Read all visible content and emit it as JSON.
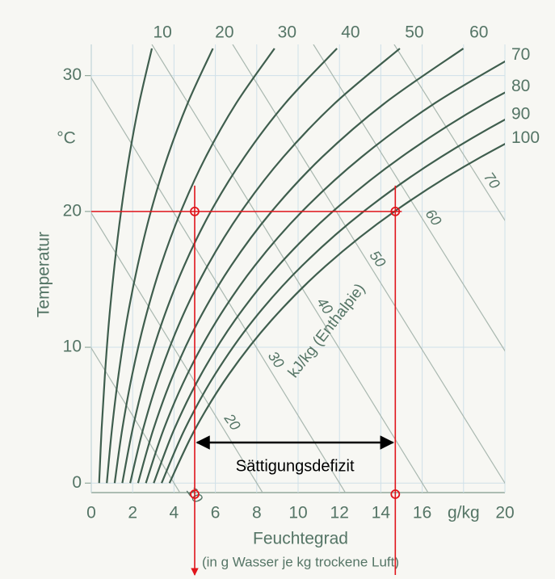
{
  "chart_data": {
    "type": "line",
    "y_label": "Temperatur",
    "y_unit": "°C",
    "x_label": "Feuchtegrad",
    "x_sublabel": "(in g Wasser je kg trockene Luft)",
    "xlim": [
      0,
      20
    ],
    "ylim": [
      -0.7,
      32.3
    ],
    "xticks": [
      0,
      2,
      4,
      6,
      8,
      10,
      12,
      14,
      16,
      {
        "value": 18,
        "label": "g/kg"
      },
      20
    ],
    "yticks": [
      0,
      10,
      20,
      30
    ],
    "grid": true,
    "temperatures": [
      0,
      4,
      8,
      12,
      16,
      20,
      24,
      28,
      32
    ],
    "series": [
      {
        "name": "10",
        "color": "#3f5e4e",
        "values": [
          0.38,
          0.5,
          0.66,
          0.86,
          1.12,
          1.44,
          1.83,
          2.32,
          2.93
        ]
      },
      {
        "name": "20",
        "color": "#3f5e4e",
        "values": [
          0.75,
          1.0,
          1.32,
          1.72,
          2.24,
          2.88,
          3.68,
          4.67,
          5.88
        ]
      },
      {
        "name": "30",
        "color": "#3f5e4e",
        "values": [
          1.13,
          1.5,
          1.98,
          2.59,
          3.36,
          4.33,
          5.53,
          7.02,
          8.86
        ]
      },
      {
        "name": "40",
        "color": "#3f5e4e",
        "values": [
          1.5,
          2.0,
          2.64,
          3.46,
          4.49,
          5.78,
          7.4,
          9.4,
          11.88
        ]
      },
      {
        "name": "50",
        "color": "#3f5e4e",
        "values": [
          1.88,
          2.51,
          3.31,
          4.33,
          5.62,
          7.25,
          9.28,
          11.8,
          14.92
        ]
      },
      {
        "name": "60",
        "color": "#3f5e4e",
        "values": [
          2.26,
          3.01,
          3.97,
          5.2,
          6.76,
          8.72,
          11.16,
          14.21,
          17.99
        ]
      },
      {
        "name": "70",
        "color": "#3f5e4e",
        "values": [
          2.64,
          3.51,
          4.64,
          6.08,
          7.9,
          10.19,
          13.06,
          16.64,
          21.09
        ]
      },
      {
        "name": "80",
        "color": "#3f5e4e",
        "values": [
          3.02,
          4.02,
          5.31,
          6.95,
          9.04,
          11.68,
          14.98,
          19.09,
          24.22
        ]
      },
      {
        "name": "90",
        "color": "#3f5e4e",
        "values": [
          3.4,
          4.53,
          5.98,
          7.83,
          10.19,
          13.17,
          16.9,
          21.56,
          27.38
        ]
      },
      {
        "name": "100",
        "color": "#3f5e4e",
        "values": [
          3.78,
          5.03,
          6.65,
          8.72,
          11.34,
          14.66,
          18.83,
          24.05,
          30.57
        ]
      }
    ],
    "enthalpy": {
      "label": "kJ/kg (Enthalpie)",
      "color": "#a9b8b0",
      "values": [
        10,
        20,
        30,
        40,
        50,
        60,
        70
      ]
    },
    "annotation": {
      "label": "Sättigungsdefizit",
      "color": "#e0151b",
      "x": [
        5,
        14.7
      ],
      "temperature": 20
    }
  }
}
